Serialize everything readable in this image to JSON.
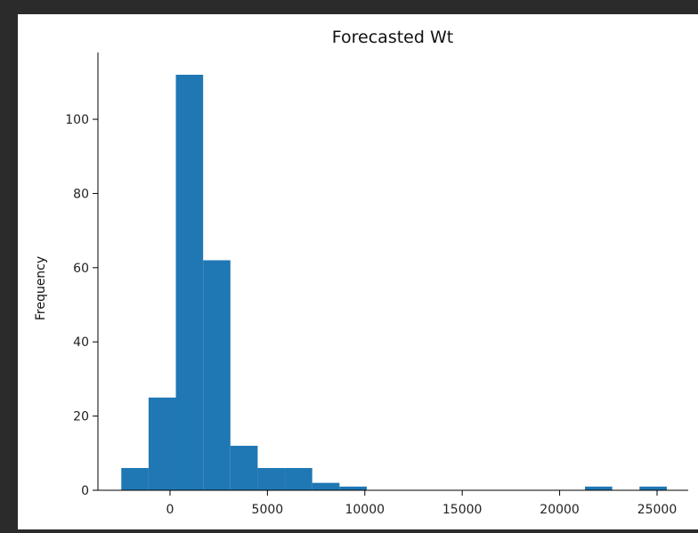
{
  "chart_data": {
    "type": "bar",
    "title": "Forecasted Wt",
    "xlabel": "",
    "ylabel": "Frequency",
    "xlim": [
      -3700,
      26600
    ],
    "ylim": [
      0,
      118
    ],
    "bin_width": 1400,
    "bins": [
      {
        "x0": -2500,
        "x1": -1100,
        "value": 6
      },
      {
        "x0": -1100,
        "x1": 300,
        "value": 25
      },
      {
        "x0": 300,
        "x1": 1700,
        "value": 112
      },
      {
        "x0": 1700,
        "x1": 3100,
        "value": 62
      },
      {
        "x0": 3100,
        "x1": 4500,
        "value": 12
      },
      {
        "x0": 4500,
        "x1": 5900,
        "value": 6
      },
      {
        "x0": 5900,
        "x1": 7300,
        "value": 6
      },
      {
        "x0": 7300,
        "x1": 8700,
        "value": 2
      },
      {
        "x0": 8700,
        "x1": 10100,
        "value": 1
      },
      {
        "x0": 10100,
        "x1": 11500,
        "value": 0
      },
      {
        "x0": 11500,
        "x1": 12900,
        "value": 0
      },
      {
        "x0": 12900,
        "x1": 14300,
        "value": 0
      },
      {
        "x0": 14300,
        "x1": 15700,
        "value": 0
      },
      {
        "x0": 15700,
        "x1": 17100,
        "value": 0
      },
      {
        "x0": 17100,
        "x1": 18500,
        "value": 0
      },
      {
        "x0": 18500,
        "x1": 19900,
        "value": 0
      },
      {
        "x0": 19900,
        "x1": 21300,
        "value": 0
      },
      {
        "x0": 21300,
        "x1": 22700,
        "value": 1
      },
      {
        "x0": 22700,
        "x1": 24100,
        "value": 0
      },
      {
        "x0": 24100,
        "x1": 25500,
        "value": 1
      }
    ],
    "x_ticks": [
      0,
      5000,
      10000,
      15000,
      20000,
      25000
    ],
    "x_tick_labels": [
      "0",
      "5000",
      "10000",
      "15000",
      "20000",
      "25000"
    ],
    "y_ticks": [
      0,
      20,
      40,
      60,
      80,
      100
    ],
    "y_tick_labels": [
      "0",
      "20",
      "40",
      "60",
      "80",
      "100"
    ],
    "bar_color": "#1f77b4",
    "grid": false,
    "legend": "none"
  }
}
